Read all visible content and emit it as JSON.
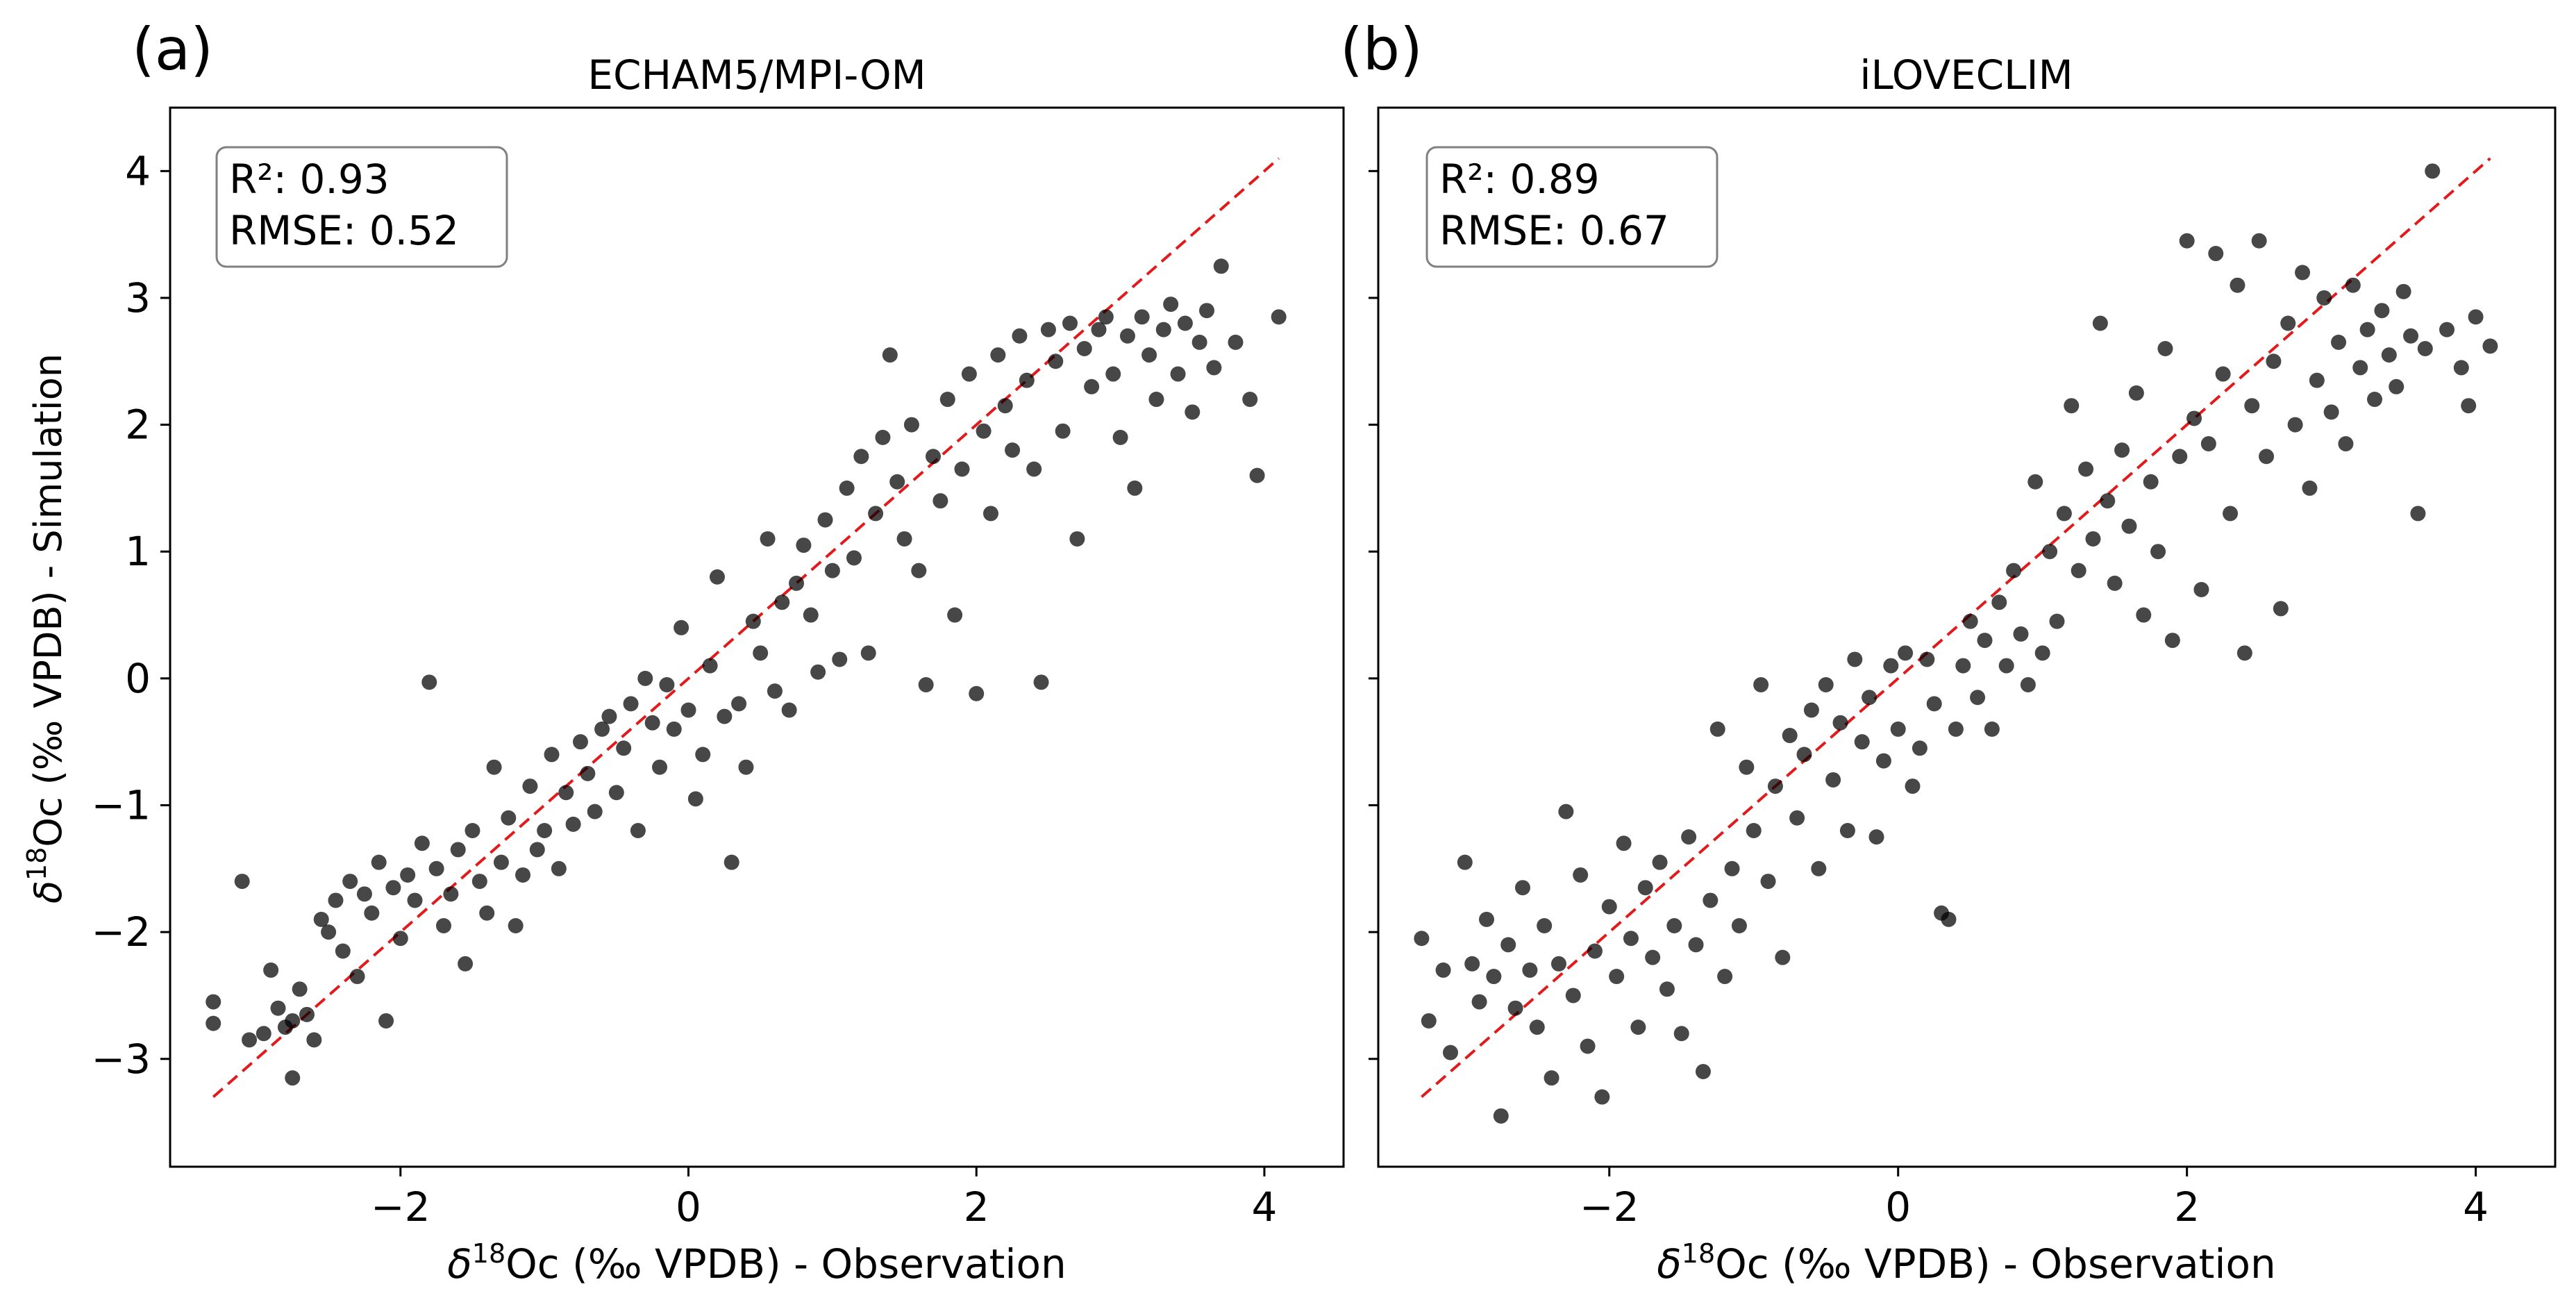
{
  "figure": {
    "ylabel": "δ18Oc (‰ VPDB) - Simulation"
  },
  "chart_data": [
    {
      "type": "scatter",
      "panel_label": "(a)",
      "title": "ECHAM5/MPI-OM",
      "xlabel": "δ18Oc (‰ VPDB) - Observation",
      "ylabel": "δ18Oc (‰ VPDB) - Simulation",
      "xlim": [
        -3.6,
        4.55
      ],
      "ylim": [
        -3.85,
        4.5
      ],
      "xticks": [
        -2,
        0,
        2,
        4
      ],
      "yticks": [
        -3,
        -2,
        -1,
        0,
        1,
        2,
        3,
        4
      ],
      "stats": {
        "r2_text": "R²: 0.93",
        "rmse_text": "RMSE: 0.52"
      },
      "reference_line": {
        "style": "dashed",
        "color": "#e31a1c",
        "x": [
          -3.3,
          4.1
        ],
        "y": [
          -3.3,
          4.1
        ]
      },
      "point_color": "#000000",
      "points": [
        [
          -3.3,
          -2.72
        ],
        [
          -3.3,
          -2.55
        ],
        [
          -3.1,
          -1.6
        ],
        [
          -3.05,
          -2.85
        ],
        [
          -2.95,
          -2.8
        ],
        [
          -2.9,
          -2.3
        ],
        [
          -2.85,
          -2.6
        ],
        [
          -2.8,
          -2.75
        ],
        [
          -2.75,
          -2.7
        ],
        [
          -2.75,
          -3.15
        ],
        [
          -2.7,
          -2.45
        ],
        [
          -2.65,
          -2.65
        ],
        [
          -2.6,
          -2.85
        ],
        [
          -2.55,
          -1.9
        ],
        [
          -2.5,
          -2.0
        ],
        [
          -2.45,
          -1.75
        ],
        [
          -2.4,
          -2.15
        ],
        [
          -2.35,
          -1.6
        ],
        [
          -2.3,
          -2.35
        ],
        [
          -2.25,
          -1.7
        ],
        [
          -2.2,
          -1.85
        ],
        [
          -2.15,
          -1.45
        ],
        [
          -2.1,
          -2.7
        ],
        [
          -2.05,
          -1.65
        ],
        [
          -2.0,
          -2.05
        ],
        [
          -1.95,
          -1.55
        ],
        [
          -1.9,
          -1.75
        ],
        [
          -1.85,
          -1.3
        ],
        [
          -1.8,
          -0.03
        ],
        [
          -1.75,
          -1.5
        ],
        [
          -1.7,
          -1.95
        ],
        [
          -1.65,
          -1.7
        ],
        [
          -1.6,
          -1.35
        ],
        [
          -1.55,
          -2.25
        ],
        [
          -1.5,
          -1.2
        ],
        [
          -1.45,
          -1.6
        ],
        [
          -1.4,
          -1.85
        ],
        [
          -1.35,
          -0.7
        ],
        [
          -1.3,
          -1.45
        ],
        [
          -1.25,
          -1.1
        ],
        [
          -1.2,
          -1.95
        ],
        [
          -1.15,
          -1.55
        ],
        [
          -1.1,
          -0.85
        ],
        [
          -1.05,
          -1.35
        ],
        [
          -1.0,
          -1.2
        ],
        [
          -0.95,
          -0.6
        ],
        [
          -0.9,
          -1.5
        ],
        [
          -0.85,
          -0.9
        ],
        [
          -0.8,
          -1.15
        ],
        [
          -0.75,
          -0.5
        ],
        [
          -0.7,
          -0.75
        ],
        [
          -0.65,
          -1.05
        ],
        [
          -0.6,
          -0.4
        ],
        [
          -0.55,
          -0.3
        ],
        [
          -0.5,
          -0.9
        ],
        [
          -0.45,
          -0.55
        ],
        [
          -0.4,
          -0.2
        ],
        [
          -0.35,
          -1.2
        ],
        [
          -0.3,
          0.0
        ],
        [
          -0.25,
          -0.35
        ],
        [
          -0.2,
          -0.7
        ],
        [
          -0.15,
          -0.05
        ],
        [
          -0.1,
          -0.4
        ],
        [
          -0.05,
          0.4
        ],
        [
          0.0,
          -0.25
        ],
        [
          0.05,
          -0.95
        ],
        [
          0.1,
          -0.6
        ],
        [
          0.15,
          0.1
        ],
        [
          0.2,
          0.8
        ],
        [
          0.25,
          -0.3
        ],
        [
          0.3,
          -1.45
        ],
        [
          0.35,
          -0.2
        ],
        [
          0.4,
          -0.7
        ],
        [
          0.45,
          0.45
        ],
        [
          0.5,
          0.2
        ],
        [
          0.55,
          1.1
        ],
        [
          0.6,
          -0.1
        ],
        [
          0.65,
          0.6
        ],
        [
          0.7,
          -0.25
        ],
        [
          0.75,
          0.75
        ],
        [
          0.8,
          1.05
        ],
        [
          0.85,
          0.5
        ],
        [
          0.9,
          0.05
        ],
        [
          0.95,
          1.25
        ],
        [
          1.0,
          0.85
        ],
        [
          1.05,
          0.15
        ],
        [
          1.1,
          1.5
        ],
        [
          1.15,
          0.95
        ],
        [
          1.2,
          1.75
        ],
        [
          1.25,
          0.2
        ],
        [
          1.3,
          1.3
        ],
        [
          1.35,
          1.9
        ],
        [
          1.4,
          2.55
        ],
        [
          1.45,
          1.55
        ],
        [
          1.5,
          1.1
        ],
        [
          1.55,
          2.0
        ],
        [
          1.6,
          0.85
        ],
        [
          1.65,
          -0.05
        ],
        [
          1.7,
          1.75
        ],
        [
          1.75,
          1.4
        ],
        [
          1.8,
          2.2
        ],
        [
          1.85,
          0.5
        ],
        [
          1.9,
          1.65
        ],
        [
          1.95,
          2.4
        ],
        [
          2.0,
          -0.12
        ],
        [
          2.05,
          1.95
        ],
        [
          2.1,
          1.3
        ],
        [
          2.15,
          2.55
        ],
        [
          2.2,
          2.15
        ],
        [
          2.25,
          1.8
        ],
        [
          2.3,
          2.7
        ],
        [
          2.35,
          2.35
        ],
        [
          2.4,
          1.65
        ],
        [
          2.45,
          -0.03
        ],
        [
          2.5,
          2.75
        ],
        [
          2.55,
          2.5
        ],
        [
          2.6,
          1.95
        ],
        [
          2.65,
          2.8
        ],
        [
          2.7,
          1.1
        ],
        [
          2.75,
          2.6
        ],
        [
          2.8,
          2.3
        ],
        [
          2.85,
          2.75
        ],
        [
          2.9,
          2.85
        ],
        [
          2.95,
          2.4
        ],
        [
          3.0,
          1.9
        ],
        [
          3.05,
          2.7
        ],
        [
          3.1,
          1.5
        ],
        [
          3.15,
          2.85
        ],
        [
          3.2,
          2.55
        ],
        [
          3.25,
          2.2
        ],
        [
          3.3,
          2.75
        ],
        [
          3.35,
          2.95
        ],
        [
          3.4,
          2.4
        ],
        [
          3.45,
          2.8
        ],
        [
          3.5,
          2.1
        ],
        [
          3.55,
          2.65
        ],
        [
          3.6,
          2.9
        ],
        [
          3.65,
          2.45
        ],
        [
          3.7,
          3.25
        ],
        [
          3.8,
          2.65
        ],
        [
          3.9,
          2.2
        ],
        [
          3.95,
          1.6
        ],
        [
          4.1,
          2.85
        ]
      ]
    },
    {
      "type": "scatter",
      "panel_label": "(b)",
      "title": "iLOVECLIM",
      "xlabel": "δ18Oc (‰ VPDB) - Observation",
      "xlim": [
        -3.6,
        4.55
      ],
      "ylim": [
        -3.85,
        4.5
      ],
      "xticks": [
        -2,
        0,
        2,
        4
      ],
      "yticks": [
        -3,
        -2,
        -1,
        0,
        1,
        2,
        3,
        4
      ],
      "stats": {
        "r2_text": "R²: 0.89",
        "rmse_text": "RMSE: 0.67"
      },
      "reference_line": {
        "style": "dashed",
        "color": "#e31a1c",
        "x": [
          -3.3,
          4.1
        ],
        "y": [
          -3.3,
          4.1
        ]
      },
      "point_color": "#000000",
      "points": [
        [
          -3.3,
          -2.05
        ],
        [
          -3.25,
          -2.7
        ],
        [
          -3.15,
          -2.3
        ],
        [
          -3.1,
          -2.95
        ],
        [
          -3.0,
          -1.45
        ],
        [
          -2.95,
          -2.25
        ],
        [
          -2.9,
          -2.55
        ],
        [
          -2.85,
          -1.9
        ],
        [
          -2.8,
          -2.35
        ],
        [
          -2.75,
          -3.45
        ],
        [
          -2.7,
          -2.1
        ],
        [
          -2.65,
          -2.6
        ],
        [
          -2.6,
          -1.65
        ],
        [
          -2.55,
          -2.3
        ],
        [
          -2.5,
          -2.75
        ],
        [
          -2.45,
          -1.95
        ],
        [
          -2.4,
          -3.15
        ],
        [
          -2.35,
          -2.25
        ],
        [
          -2.3,
          -1.05
        ],
        [
          -2.25,
          -2.5
        ],
        [
          -2.2,
          -1.55
        ],
        [
          -2.15,
          -2.9
        ],
        [
          -2.1,
          -2.15
        ],
        [
          -2.05,
          -3.3
        ],
        [
          -2.0,
          -1.8
        ],
        [
          -1.95,
          -2.35
        ],
        [
          -1.9,
          -1.3
        ],
        [
          -1.85,
          -2.05
        ],
        [
          -1.8,
          -2.75
        ],
        [
          -1.75,
          -1.65
        ],
        [
          -1.7,
          -2.2
        ],
        [
          -1.65,
          -1.45
        ],
        [
          -1.6,
          -2.45
        ],
        [
          -1.55,
          -1.95
        ],
        [
          -1.5,
          -2.8
        ],
        [
          -1.45,
          -1.25
        ],
        [
          -1.4,
          -2.1
        ],
        [
          -1.35,
          -3.1
        ],
        [
          -1.3,
          -1.75
        ],
        [
          -1.25,
          -0.4
        ],
        [
          -1.2,
          -2.35
        ],
        [
          -1.15,
          -1.5
        ],
        [
          -1.1,
          -1.95
        ],
        [
          -1.05,
          -0.7
        ],
        [
          -1.0,
          -1.2
        ],
        [
          -0.95,
          -0.05
        ],
        [
          -0.9,
          -1.6
        ],
        [
          -0.85,
          -0.85
        ],
        [
          -0.8,
          -2.2
        ],
        [
          -0.75,
          -0.45
        ],
        [
          -0.7,
          -1.1
        ],
        [
          -0.65,
          -0.6
        ],
        [
          -0.6,
          -0.25
        ],
        [
          -0.55,
          -1.5
        ],
        [
          -0.5,
          -0.05
        ],
        [
          -0.45,
          -0.8
        ],
        [
          -0.4,
          -0.35
        ],
        [
          -0.35,
          -1.2
        ],
        [
          -0.3,
          0.15
        ],
        [
          -0.25,
          -0.5
        ],
        [
          -0.2,
          -0.15
        ],
        [
          -0.15,
          -1.25
        ],
        [
          -0.1,
          -0.65
        ],
        [
          -0.05,
          0.1
        ],
        [
          0.0,
          -0.4
        ],
        [
          0.05,
          0.2
        ],
        [
          0.1,
          -0.85
        ],
        [
          0.15,
          -0.55
        ],
        [
          0.2,
          0.15
        ],
        [
          0.25,
          -0.2
        ],
        [
          0.3,
          -1.85
        ],
        [
          0.35,
          -1.9
        ],
        [
          0.4,
          -0.4
        ],
        [
          0.45,
          0.1
        ],
        [
          0.5,
          0.45
        ],
        [
          0.55,
          -0.15
        ],
        [
          0.6,
          0.3
        ],
        [
          0.65,
          -0.4
        ],
        [
          0.7,
          0.6
        ],
        [
          0.75,
          0.1
        ],
        [
          0.8,
          0.85
        ],
        [
          0.85,
          0.35
        ],
        [
          0.9,
          -0.05
        ],
        [
          0.95,
          1.55
        ],
        [
          1.0,
          0.2
        ],
        [
          1.05,
          1.0
        ],
        [
          1.1,
          0.45
        ],
        [
          1.15,
          1.3
        ],
        [
          1.2,
          2.15
        ],
        [
          1.25,
          0.85
        ],
        [
          1.3,
          1.65
        ],
        [
          1.35,
          1.1
        ],
        [
          1.4,
          2.8
        ],
        [
          1.45,
          1.4
        ],
        [
          1.5,
          0.75
        ],
        [
          1.55,
          1.8
        ],
        [
          1.6,
          1.2
        ],
        [
          1.65,
          2.25
        ],
        [
          1.7,
          0.5
        ],
        [
          1.75,
          1.55
        ],
        [
          1.8,
          1.0
        ],
        [
          1.85,
          2.6
        ],
        [
          1.9,
          0.3
        ],
        [
          1.95,
          1.75
        ],
        [
          2.0,
          3.45
        ],
        [
          2.05,
          2.05
        ],
        [
          2.1,
          0.7
        ],
        [
          2.15,
          1.85
        ],
        [
          2.2,
          3.35
        ],
        [
          2.25,
          2.4
        ],
        [
          2.3,
          1.3
        ],
        [
          2.35,
          3.1
        ],
        [
          2.4,
          0.2
        ],
        [
          2.45,
          2.15
        ],
        [
          2.5,
          3.45
        ],
        [
          2.55,
          1.75
        ],
        [
          2.6,
          2.5
        ],
        [
          2.65,
          0.55
        ],
        [
          2.7,
          2.8
        ],
        [
          2.75,
          2.0
        ],
        [
          2.8,
          3.2
        ],
        [
          2.85,
          1.5
        ],
        [
          2.9,
          2.35
        ],
        [
          2.95,
          3.0
        ],
        [
          3.0,
          2.1
        ],
        [
          3.05,
          2.65
        ],
        [
          3.1,
          1.85
        ],
        [
          3.15,
          3.1
        ],
        [
          3.2,
          2.45
        ],
        [
          3.25,
          2.75
        ],
        [
          3.3,
          2.2
        ],
        [
          3.35,
          2.9
        ],
        [
          3.4,
          2.55
        ],
        [
          3.45,
          2.3
        ],
        [
          3.5,
          3.05
        ],
        [
          3.55,
          2.7
        ],
        [
          3.6,
          1.3
        ],
        [
          3.65,
          2.6
        ],
        [
          3.7,
          4.0
        ],
        [
          3.8,
          2.75
        ],
        [
          3.9,
          2.45
        ],
        [
          3.95,
          2.15
        ],
        [
          4.0,
          2.85
        ],
        [
          4.1,
          2.62
        ]
      ]
    }
  ]
}
